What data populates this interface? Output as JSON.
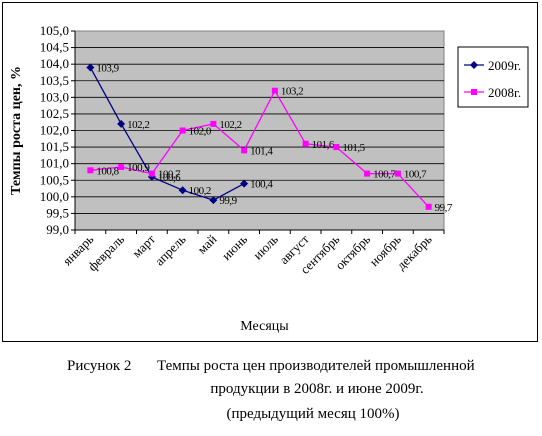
{
  "chart_data": {
    "type": "line",
    "ylabel": "Темпы роста цен, %",
    "xlabel": "Месяцы",
    "ylim": [
      99.0,
      105.0
    ],
    "ystep": 0.5,
    "grid": true,
    "legend_position": "right",
    "categories": [
      "январь",
      "февраль",
      "март",
      "апрель",
      "май",
      "июнь",
      "июль",
      "август",
      "сентябрь",
      "октябрь",
      "ноябрь",
      "декабрь"
    ],
    "series": [
      {
        "name": "2009г.",
        "color": "#000080",
        "marker": "diamond",
        "values": [
          103.9,
          102.2,
          100.6,
          100.2,
          99.9,
          100.4,
          null,
          null,
          null,
          null,
          null,
          null
        ],
        "labels": [
          "103,9",
          "102,2",
          "100,6",
          "100,2",
          "99,9",
          "100,4",
          "",
          "",
          "",
          "",
          "",
          ""
        ]
      },
      {
        "name": "2008г.",
        "color": "#ff00ff",
        "marker": "square",
        "values": [
          100.8,
          100.9,
          100.7,
          102.0,
          102.2,
          101.4,
          103.2,
          101.6,
          101.5,
          100.7,
          100.7,
          99.7
        ],
        "labels": [
          "100,8",
          "100,9",
          "100,7",
          "102,0",
          "102,2",
          "101,4",
          "103,2",
          "101,6",
          "101,5",
          "100,7",
          "100,7",
          "99,7"
        ]
      }
    ],
    "ytick_labels": [
      "99,0",
      "99,5",
      "100,0",
      "100,5",
      "101,0",
      "101,5",
      "102,0",
      "102,5",
      "103,0",
      "103,5",
      "104,0",
      "104,5",
      "105,0"
    ]
  },
  "caption": {
    "figure_number": "Рисунок 2",
    "line1": "Темпы роста цен производителей промышленной",
    "line2": "продукции в 2008г. и июне 2009г.",
    "line3": "(предыдущий месяц 100%)"
  }
}
